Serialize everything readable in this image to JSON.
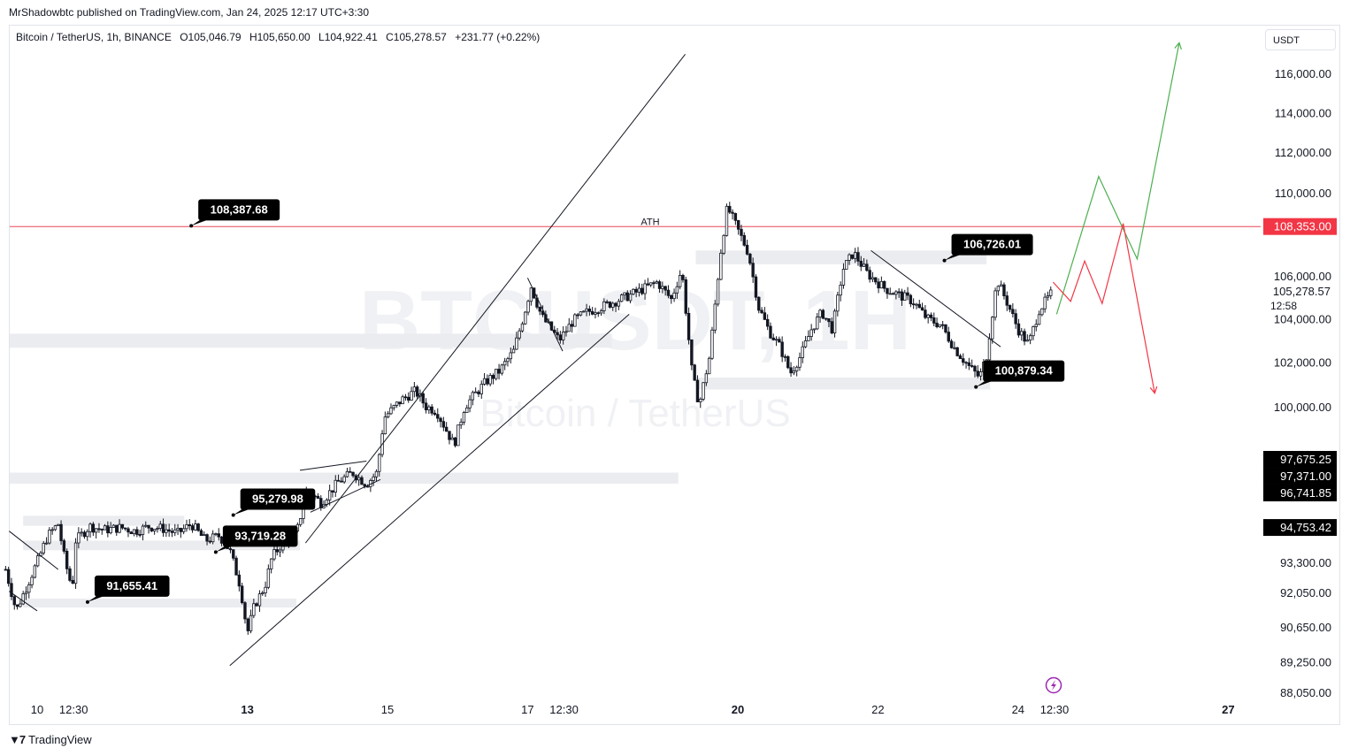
{
  "header": {
    "published": "MrShadowbtc published on TradingView.com, Jan 24, 2025 12:17 UTC+3:30"
  },
  "symbol": {
    "name": "Bitcoin / TetherUS, 1h, BINANCE",
    "open": "O105,046.79",
    "high": "H105,650.00",
    "low": "L104,922.41",
    "close": "C105,278.57",
    "change": "+231.77 (+0.22%)"
  },
  "currency": "USDT",
  "watermark": {
    "ticker": "BTCUSDT, 1H",
    "name": "Bitcoin / TetherUS"
  },
  "footer": {
    "brand": "TradingView"
  },
  "colors": {
    "up": "#131722",
    "resistance": "#e84955",
    "bullish": "#4caf50",
    "bearish": "#f23645",
    "zone": "#ebecef"
  },
  "chart_data": {
    "type": "candlestick",
    "y_scale": "log",
    "ylim": [
      87800,
      118500
    ],
    "y_ticks": [
      {
        "value": 116000,
        "label": "116,000.00"
      },
      {
        "value": 114000,
        "label": "114,000.00"
      },
      {
        "value": 112000,
        "label": "112,000.00"
      },
      {
        "value": 110000,
        "label": "110,000.00"
      },
      {
        "value": 106000,
        "label": "106,000.00"
      },
      {
        "value": 104000,
        "label": "104,000.00"
      },
      {
        "value": 102000,
        "label": "102,000.00"
      },
      {
        "value": 100000,
        "label": "100,000.00"
      },
      {
        "value": 93300,
        "label": "93,300.00"
      },
      {
        "value": 92050,
        "label": "92,050.00"
      },
      {
        "value": 90650,
        "label": "90,650.00"
      },
      {
        "value": 89250,
        "label": "89,250.00"
      },
      {
        "value": 88050,
        "label": "88,050.00"
      }
    ],
    "x_ticks": [
      {
        "day": 10,
        "label": "10",
        "bold": false
      },
      {
        "day": 10.52,
        "label": "12:30",
        "bold": false
      },
      {
        "day": 13,
        "label": "13",
        "bold": true
      },
      {
        "day": 15,
        "label": "15",
        "bold": false
      },
      {
        "day": 17,
        "label": "17",
        "bold": false
      },
      {
        "day": 17.52,
        "label": "12:30",
        "bold": false
      },
      {
        "day": 20,
        "label": "20",
        "bold": true
      },
      {
        "day": 22,
        "label": "22",
        "bold": false
      },
      {
        "day": 24,
        "label": "24",
        "bold": false
      },
      {
        "day": 24.52,
        "label": "12:30",
        "bold": false
      },
      {
        "day": 27,
        "label": "27",
        "bold": true
      }
    ],
    "price_tags": [
      {
        "value": 108353,
        "label": "108,353.00",
        "style": "red"
      },
      {
        "value": 105278.57,
        "label": "105,278.57",
        "sub": "12:58",
        "style": "plain"
      },
      {
        "value": 97675.25,
        "label": "97,675.25",
        "style": "dark"
      },
      {
        "value": 97371,
        "label": "97,371.00",
        "style": "dark"
      },
      {
        "value": 96741.85,
        "label": "96,741.85",
        "style": "dark"
      },
      {
        "value": 94753.42,
        "label": "94,753.42",
        "style": "dark"
      }
    ],
    "callouts": [
      {
        "label": "108,387.68",
        "day": 12.3,
        "value": 108387.68
      },
      {
        "label": "106,726.01",
        "day": 23.05,
        "value": 106726.01
      },
      {
        "label": "100,879.34",
        "day": 23.5,
        "value": 100879.34
      },
      {
        "label": "95,279.98",
        "day": 12.9,
        "value": 95279.98
      },
      {
        "label": "93,719.28",
        "day": 12.65,
        "value": 93719.28
      },
      {
        "label": "91,655.41",
        "day": 10.82,
        "value": 91655.41
      }
    ],
    "annotations": [
      {
        "label": "ATH",
        "day": 18.75,
        "value": 108600
      }
    ],
    "resistance_line": 108353,
    "zones": [
      {
        "from_day": 9.6,
        "to_day": 18.2,
        "low": 102900,
        "high": 103300
      },
      {
        "from_day": 19.4,
        "to_day": 23.55,
        "low": 106800,
        "high": 107200
      },
      {
        "from_day": 19.4,
        "to_day": 23.6,
        "low": 101000,
        "high": 101300
      },
      {
        "from_day": 9.6,
        "to_day": 19.15,
        "low": 96850,
        "high": 97100
      },
      {
        "from_day": 9.8,
        "to_day": 12.1,
        "low": 95050,
        "high": 95250
      },
      {
        "from_day": 9.8,
        "to_day": 13.75,
        "low": 94020,
        "high": 94200
      },
      {
        "from_day": 9.8,
        "to_day": 13.7,
        "low": 91650,
        "high": 91800
      }
    ],
    "trendlines": [
      {
        "from": [
          9.6,
          94600
        ],
        "to": [
          10.3,
          93000
        ]
      },
      {
        "from": [
          9.6,
          92100
        ],
        "to": [
          10.0,
          91300
        ]
      },
      {
        "from": [
          12.75,
          89100
        ],
        "to": [
          18.45,
          104200
        ]
      },
      {
        "from": [
          13.83,
          94100
        ],
        "to": [
          19.25,
          117000
        ]
      },
      {
        "from": [
          13.75,
          97200
        ],
        "to": [
          14.7,
          97600
        ]
      },
      {
        "from": [
          13.9,
          95400
        ],
        "to": [
          14.9,
          96800
        ]
      },
      {
        "from": [
          17.0,
          105900
        ],
        "to": [
          17.5,
          102500
        ]
      },
      {
        "from": [
          21.9,
          107200
        ],
        "to": [
          23.75,
          102700
        ]
      }
    ],
    "projections": [
      {
        "name": "bullish",
        "points": [
          [
            24.55,
            104200
          ],
          [
            25.15,
            110800
          ],
          [
            25.7,
            106800
          ],
          [
            26.3,
            117600
          ]
        ]
      },
      {
        "name": "bearish",
        "points": [
          [
            24.5,
            105700
          ],
          [
            24.75,
            104800
          ],
          [
            24.95,
            106700
          ],
          [
            25.2,
            104700
          ],
          [
            25.5,
            108500
          ],
          [
            25.95,
            100600
          ]
        ]
      }
    ],
    "price_path": [
      [
        9.55,
        93000
      ],
      [
        9.7,
        91300
      ],
      [
        9.85,
        92300
      ],
      [
        10.0,
        93300
      ],
      [
        10.15,
        94400
      ],
      [
        10.3,
        94900
      ],
      [
        10.4,
        93300
      ],
      [
        10.5,
        92200
      ],
      [
        10.55,
        94200
      ],
      [
        10.75,
        94800
      ],
      [
        10.95,
        94650
      ],
      [
        11.2,
        94750
      ],
      [
        11.4,
        94600
      ],
      [
        11.6,
        94800
      ],
      [
        11.8,
        94700
      ],
      [
        12.0,
        94500
      ],
      [
        12.2,
        94900
      ],
      [
        12.4,
        94200
      ],
      [
        12.6,
        94400
      ],
      [
        12.75,
        93800
      ],
      [
        12.9,
        92300
      ],
      [
        13.0,
        90400
      ],
      [
        13.1,
        91500
      ],
      [
        13.25,
        92300
      ],
      [
        13.35,
        93500
      ],
      [
        13.5,
        94100
      ],
      [
        13.7,
        94500
      ],
      [
        13.85,
        96400
      ],
      [
        14.05,
        95800
      ],
      [
        14.3,
        96700
      ],
      [
        14.5,
        97100
      ],
      [
        14.7,
        96600
      ],
      [
        14.85,
        97100
      ],
      [
        14.95,
        99500
      ],
      [
        15.2,
        100300
      ],
      [
        15.4,
        100700
      ],
      [
        15.55,
        100000
      ],
      [
        15.7,
        99800
      ],
      [
        15.95,
        98300
      ],
      [
        16.1,
        100000
      ],
      [
        16.4,
        101100
      ],
      [
        16.6,
        101600
      ],
      [
        16.8,
        102500
      ],
      [
        16.95,
        104200
      ],
      [
        17.05,
        105500
      ],
      [
        17.2,
        104100
      ],
      [
        17.45,
        103000
      ],
      [
        17.65,
        103900
      ],
      [
        17.85,
        104300
      ],
      [
        18.1,
        104600
      ],
      [
        18.4,
        105000
      ],
      [
        18.6,
        105300
      ],
      [
        18.85,
        105700
      ],
      [
        19.05,
        104900
      ],
      [
        19.2,
        106300
      ],
      [
        19.35,
        101400
      ],
      [
        19.45,
        100100
      ],
      [
        19.6,
        102300
      ],
      [
        19.75,
        107000
      ],
      [
        19.85,
        109300
      ],
      [
        20.0,
        108200
      ],
      [
        20.15,
        107100
      ],
      [
        20.3,
        104500
      ],
      [
        20.45,
        103400
      ],
      [
        20.6,
        102700
      ],
      [
        20.75,
        101500
      ],
      [
        20.9,
        102300
      ],
      [
        21.05,
        103500
      ],
      [
        21.2,
        104300
      ],
      [
        21.35,
        103500
      ],
      [
        21.5,
        106300
      ],
      [
        21.65,
        107100
      ],
      [
        21.85,
        106100
      ],
      [
        22.1,
        105400
      ],
      [
        22.3,
        105100
      ],
      [
        22.5,
        104800
      ],
      [
        22.7,
        104000
      ],
      [
        22.9,
        103700
      ],
      [
        23.1,
        102600
      ],
      [
        23.3,
        101800
      ],
      [
        23.45,
        101300
      ],
      [
        23.55,
        102300
      ],
      [
        23.7,
        105800
      ],
      [
        23.85,
        104700
      ],
      [
        24.0,
        103500
      ],
      [
        24.15,
        102800
      ],
      [
        24.3,
        104400
      ],
      [
        24.5,
        105278
      ]
    ]
  }
}
